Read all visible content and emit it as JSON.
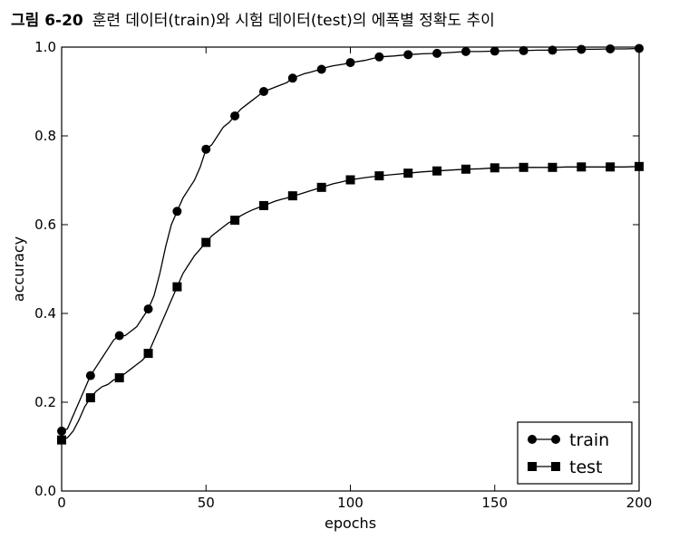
{
  "caption": {
    "label": "그림 6-20",
    "title": "훈련 데이터(train)와 시험 데이터(test)의 에폭별 정확도 추이"
  },
  "chart_data": {
    "type": "line",
    "xlabel": "epochs",
    "ylabel": "accuracy",
    "xlim": [
      0,
      200
    ],
    "ylim": [
      0.0,
      1.0
    ],
    "xticks": [
      0,
      50,
      100,
      150,
      200
    ],
    "xtick_labels": [
      "0",
      "50",
      "100",
      "150",
      "200"
    ],
    "yticks": [
      0.0,
      0.2,
      0.4,
      0.6,
      0.8,
      1.0
    ],
    "ytick_labels": [
      "0.0",
      "0.2",
      "0.4",
      "0.6",
      "0.8",
      "1.0"
    ],
    "grid": false,
    "legend_position": "lower-right",
    "marker_every": 10,
    "series": [
      {
        "name": "train",
        "marker": "circle",
        "color": "#000000",
        "x": [
          0,
          2,
          4,
          6,
          8,
          10,
          12,
          14,
          16,
          18,
          20,
          22,
          24,
          26,
          28,
          30,
          32,
          34,
          36,
          38,
          40,
          42,
          44,
          46,
          48,
          50,
          52,
          54,
          56,
          58,
          60,
          62,
          64,
          66,
          68,
          70,
          72,
          74,
          76,
          78,
          80,
          82,
          84,
          86,
          88,
          90,
          92,
          94,
          96,
          98,
          100,
          105,
          110,
          115,
          120,
          125,
          130,
          135,
          140,
          145,
          150,
          155,
          160,
          165,
          170,
          175,
          180,
          185,
          190,
          195,
          200
        ],
        "y": [
          0.135,
          0.14,
          0.17,
          0.2,
          0.23,
          0.26,
          0.28,
          0.3,
          0.32,
          0.34,
          0.35,
          0.35,
          0.36,
          0.37,
          0.39,
          0.41,
          0.44,
          0.49,
          0.55,
          0.6,
          0.63,
          0.66,
          0.68,
          0.7,
          0.73,
          0.77,
          0.78,
          0.8,
          0.82,
          0.83,
          0.845,
          0.86,
          0.87,
          0.88,
          0.89,
          0.9,
          0.905,
          0.91,
          0.915,
          0.92,
          0.93,
          0.935,
          0.94,
          0.943,
          0.947,
          0.95,
          0.955,
          0.958,
          0.96,
          0.962,
          0.965,
          0.97,
          0.978,
          0.98,
          0.983,
          0.985,
          0.986,
          0.988,
          0.99,
          0.99,
          0.991,
          0.992,
          0.992,
          0.993,
          0.993,
          0.994,
          0.995,
          0.995,
          0.996,
          0.996,
          0.997
        ]
      },
      {
        "name": "test",
        "marker": "square",
        "color": "#000000",
        "x": [
          0,
          2,
          4,
          6,
          8,
          10,
          12,
          14,
          16,
          18,
          20,
          22,
          24,
          26,
          28,
          30,
          32,
          34,
          36,
          38,
          40,
          42,
          44,
          46,
          48,
          50,
          52,
          54,
          56,
          58,
          60,
          62,
          64,
          66,
          68,
          70,
          72,
          74,
          76,
          78,
          80,
          82,
          84,
          86,
          88,
          90,
          92,
          94,
          96,
          98,
          100,
          105,
          110,
          115,
          120,
          125,
          130,
          135,
          140,
          145,
          150,
          155,
          160,
          165,
          170,
          175,
          180,
          185,
          190,
          195,
          200
        ],
        "y": [
          0.115,
          0.12,
          0.135,
          0.16,
          0.19,
          0.21,
          0.225,
          0.235,
          0.24,
          0.25,
          0.255,
          0.265,
          0.275,
          0.285,
          0.295,
          0.31,
          0.34,
          0.37,
          0.4,
          0.43,
          0.46,
          0.49,
          0.51,
          0.53,
          0.545,
          0.56,
          0.575,
          0.585,
          0.595,
          0.605,
          0.61,
          0.62,
          0.627,
          0.633,
          0.638,
          0.643,
          0.648,
          0.653,
          0.657,
          0.66,
          0.665,
          0.668,
          0.672,
          0.676,
          0.68,
          0.684,
          0.688,
          0.692,
          0.695,
          0.698,
          0.701,
          0.706,
          0.71,
          0.713,
          0.716,
          0.719,
          0.721,
          0.723,
          0.725,
          0.726,
          0.728,
          0.728,
          0.729,
          0.729,
          0.729,
          0.73,
          0.73,
          0.73,
          0.73,
          0.73,
          0.731
        ]
      }
    ]
  }
}
